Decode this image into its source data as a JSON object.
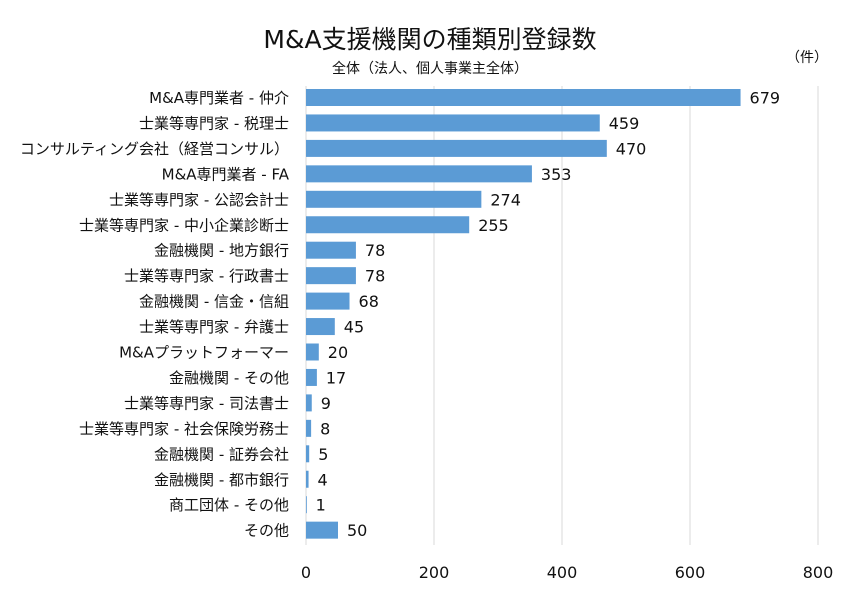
{
  "chart_data": {
    "type": "bar",
    "orientation": "horizontal",
    "title": "M&A支援機関の種類別登録数",
    "subtitle": "全体（法人、個人事業主全体）",
    "unit_label": "（件）",
    "xlim": [
      0,
      800
    ],
    "xticks": [
      0,
      200,
      400,
      600,
      800
    ],
    "grid": true,
    "bar_color": "#5b9bd5",
    "categories": [
      "M&A専門業者 - 仲介",
      "士業等専門家 - 税理士",
      "コンサルティング会社（経営コンサル）",
      "M&A専門業者 - FA",
      "士業等専門家 - 公認会計士",
      "士業等専門家 - 中小企業診断士",
      "金融機関 - 地方銀行",
      "士業等専門家 - 行政書士",
      "金融機関 - 信金・信組",
      "士業等専門家 - 弁護士",
      "M&Aプラットフォーマー",
      "金融機関 - その他",
      "士業等専門家 - 司法書士",
      "士業等専門家 - 社会保険労務士",
      "金融機関 - 証券会社",
      "金融機関 - 都市銀行",
      "商工団体 - その他",
      "その他"
    ],
    "values": [
      679,
      459,
      470,
      353,
      274,
      255,
      78,
      78,
      68,
      45,
      20,
      17,
      9,
      8,
      5,
      4,
      1,
      50
    ]
  }
}
